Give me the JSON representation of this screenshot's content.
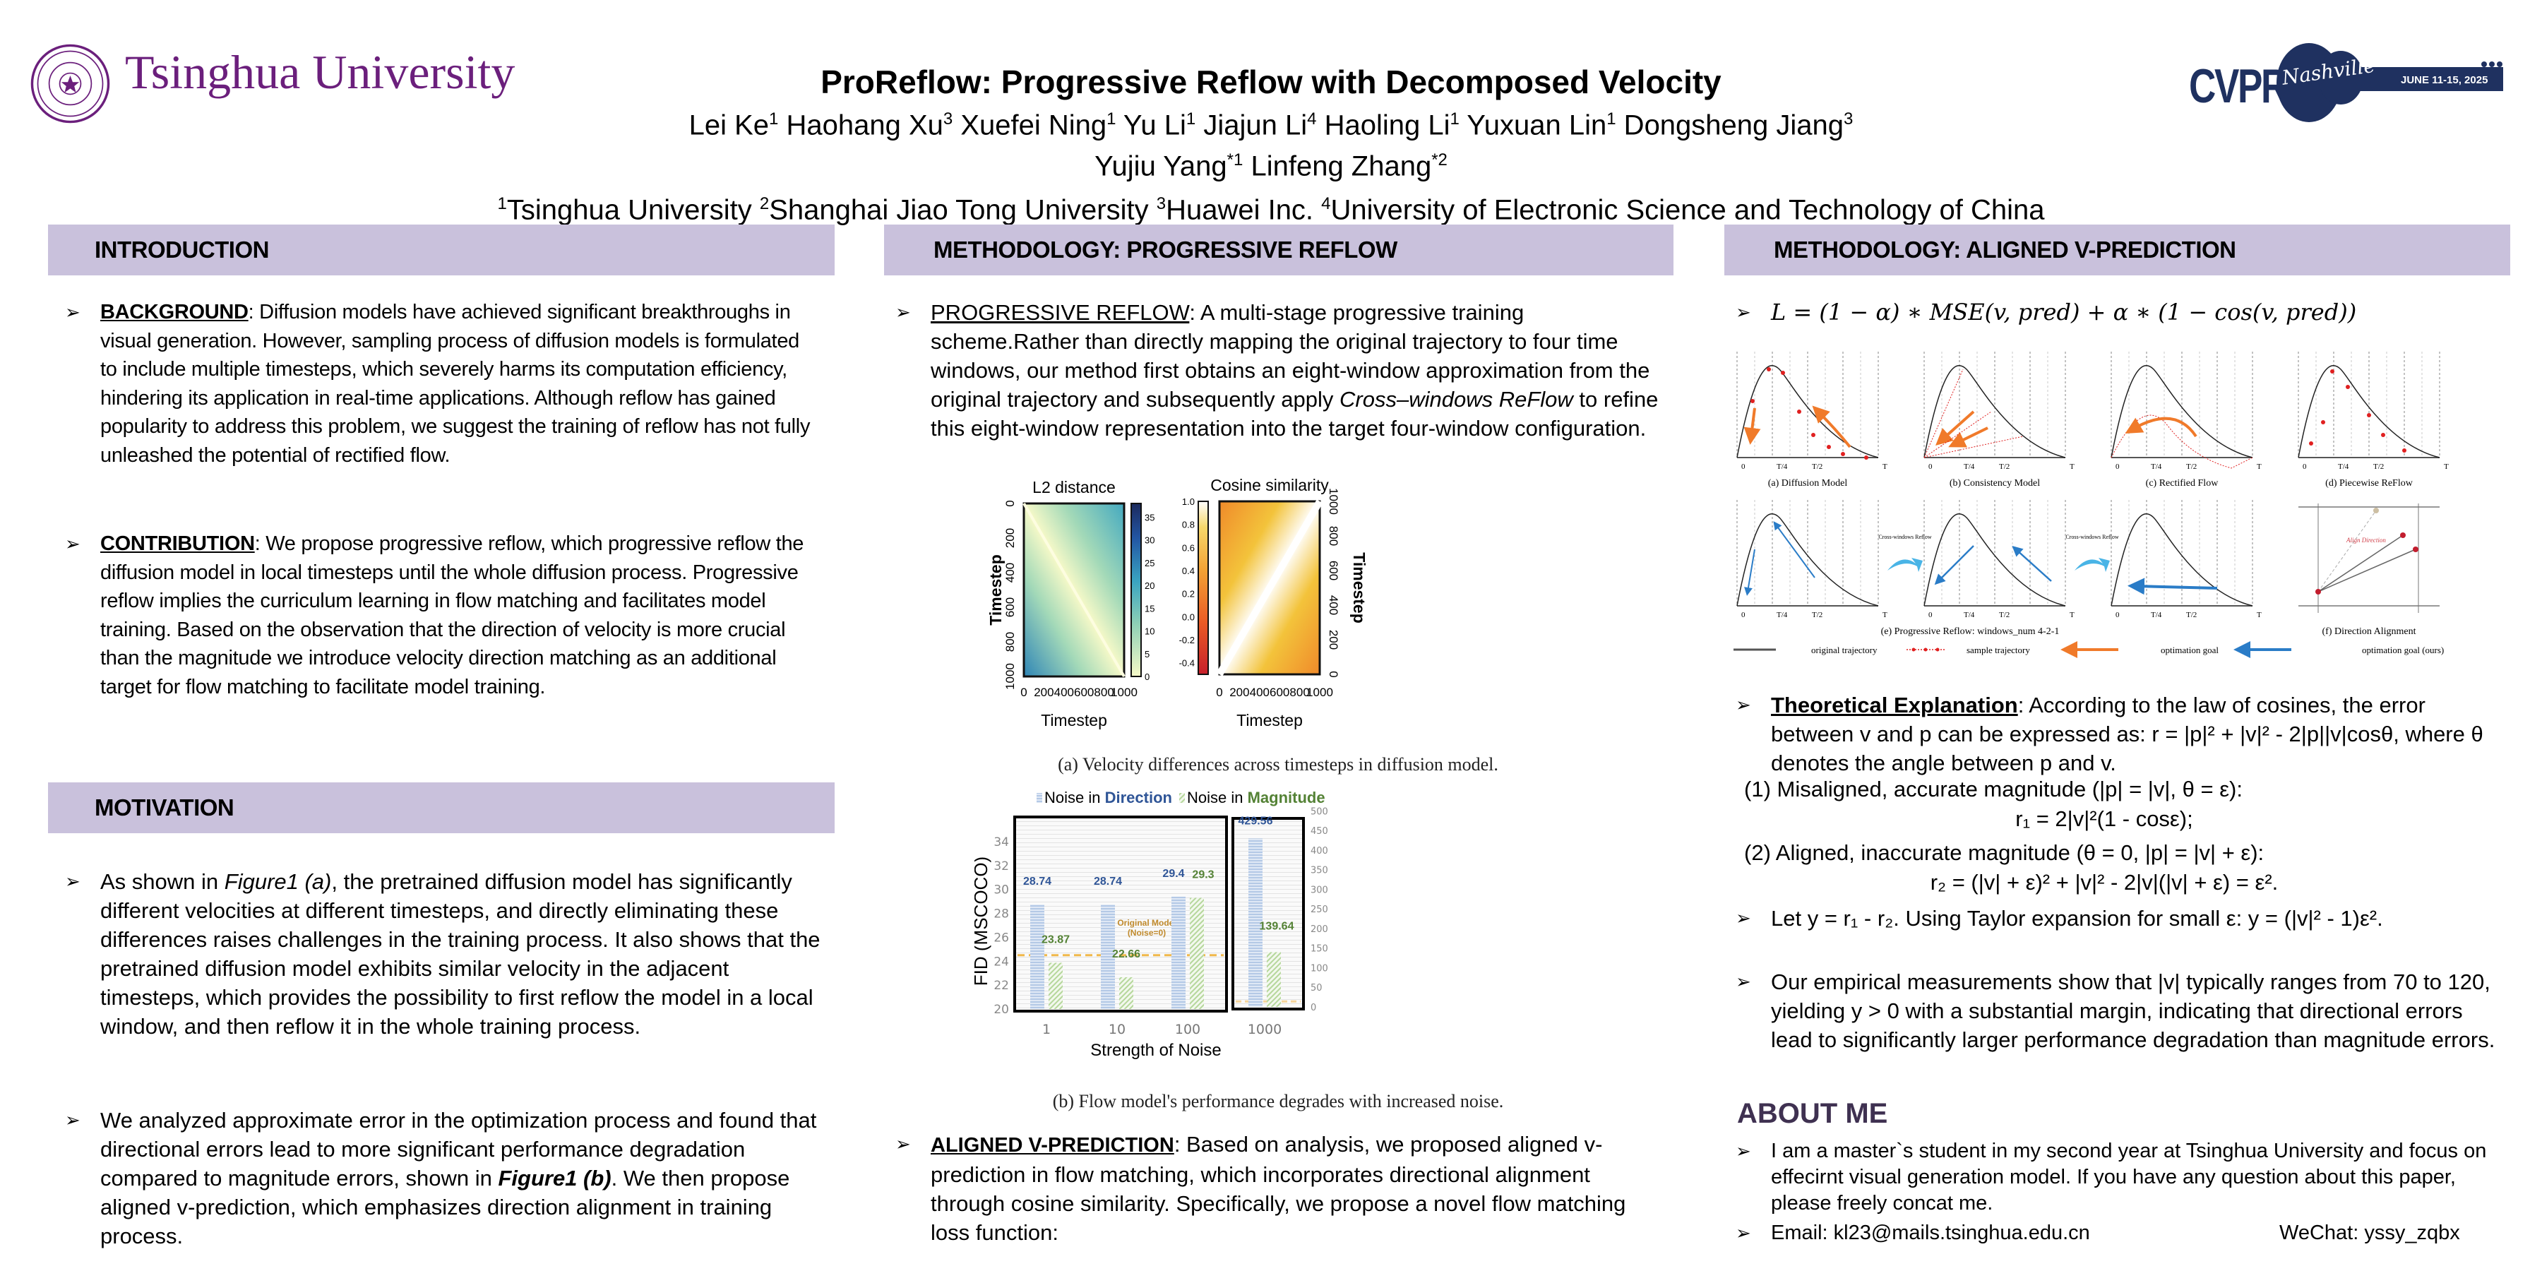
{
  "header": {
    "university_logo_text": "Tsinghua University",
    "title": "ProReflow: Progressive Reflow with Decomposed Velocity",
    "authors_line1": [
      {
        "name": "Lei Ke",
        "aff": "1"
      },
      {
        "name": "Haohang Xu",
        "aff": "3"
      },
      {
        "name": "Xuefei Ning",
        "aff": "1"
      },
      {
        "name": "Yu Li",
        "aff": "1"
      },
      {
        "name": "Jiajun Li",
        "aff": "4"
      },
      {
        "name": "Haoling Li",
        "aff": "1"
      },
      {
        "name": "Yuxuan Lin",
        "aff": "1"
      },
      {
        "name": "Dongsheng Jiang",
        "aff": "3"
      }
    ],
    "authors_line2": [
      {
        "name": "Yujiu Yang",
        "aff": "*1"
      },
      {
        "name": "Linfeng Zhang",
        "aff": "*2"
      }
    ],
    "affiliations": [
      {
        "num": "1",
        "name": "Tsinghua University"
      },
      {
        "num": "2",
        "name": "Shanghai Jiao Tong University"
      },
      {
        "num": "3",
        "name": "Huawei Inc."
      },
      {
        "num": "4",
        "name": "University of Electronic Science and Technology of China"
      }
    ],
    "conference_logo": {
      "name": "CVPR",
      "city": "Nashville",
      "dates": "JUNE 11-15, 2025"
    },
    "colors": {
      "purple": "#6b1f7c",
      "cvpr_navy": "#1f3160",
      "section_bg": "#c9c1dc"
    }
  },
  "introduction": {
    "heading": "INTRODUCTION",
    "background_label": "BACKGROUND",
    "background_text": ": Diffusion models have achieved significant breakthroughs in visual generation. However,  sampling process of diffusion models is formulated to include multiple timesteps, which severely harms its computation efficiency, hindering its application in real-time applications. Although reflow has gained popularity to address this problem, we suggest the training of reflow has not fully unleashed the potential of rectified flow.",
    "contribution_label": "CONTRIBUTION",
    "contribution_text": ": We propose progressive reflow, which progressive reflow the diffusion model in local timesteps until the whole diffusion process. Progressive reflow implies the curriculum learning in flow matching and facilitates model training. Based on the observation that the direction of velocity is more crucial than the magnitude we introduce velocity direction matching as an additional target for flow matching to facilitate model training."
  },
  "motivation": {
    "heading": "MOTIVATION",
    "p1_pre": " As shown in ",
    "p1_ref": "Figure1 (a)",
    "p1_post": ", the pretrained diffusion model has significantly different velocities at different timesteps, and directly eliminating these differences raises challenges in the training process. It also shows that the pretrained diffusion model exhibits similar velocity in the adjacent timesteps, which provides the possibility to first reflow the model in a local window, and then reflow it in the whole training process.",
    "p2_pre": "We analyzed approximate error in the optimization process and found that directional errors lead to more significant performance degradation compared to magnitude errors, shown in ",
    "p2_ref": "Figure1 (b)",
    "p2_post": ". We then propose aligned v-prediction, which emphasizes direction alignment in training process."
  },
  "progressive_reflow": {
    "heading": "METHODOLOGY: PROGRESSIVE REFLOW",
    "label": "PROGRESSIVE REFLOW",
    "text_pre": ": A multi-stage progressive training scheme.Rather than directly mapping the original trajectory to four time windows, our method first obtains an eight-window approximation from the original trajectory and subsequently apply ",
    "text_em": "Cross–windows ReFlow",
    "text_post": " to refine this eight-window representation into the target four-window configuration.",
    "fig_a_caption": "(a) Velocity differences across timesteps in diffusion model.",
    "fig_b_caption": "(b) Flow model's performance degrades with increased noise.",
    "aligned_label": "ALIGNED V-PREDICTION",
    "aligned_text": ": Based on analysis, we proposed aligned v-prediction in flow matching, which incorporates directional alignment through cosine similarity. Specifically, we propose a novel flow matching loss function:"
  },
  "chart_data": [
    {
      "type": "heatmap",
      "title": "L2 distance",
      "xlabel": "Timestep",
      "ylabel": "Timestep",
      "x_ticks": [
        "0",
        "200",
        "400",
        "600",
        "800",
        "1000"
      ],
      "y_ticks": [
        "0",
        "200",
        "400",
        "600",
        "800",
        "1000"
      ],
      "colorbar_ticks": [
        "0",
        "5",
        "10",
        "15",
        "20",
        "25",
        "30",
        "35"
      ],
      "colorbar_range": [
        0,
        38
      ],
      "description": "distance grows with |i - j|, zero on diagonal"
    },
    {
      "type": "heatmap",
      "title": "Cosine similarity",
      "xlabel": "Timestep",
      "ylabel": "Timestep",
      "x_ticks": [
        "0",
        "200",
        "400",
        "600",
        "800",
        "1000"
      ],
      "y_ticks": [
        "1000",
        "800",
        "600",
        "400",
        "200",
        "0"
      ],
      "colorbar_ticks": [
        "1.0",
        "0.8",
        "0.6",
        "0.4",
        "0.2",
        "0.0",
        "-0.2",
        "-0.4"
      ],
      "colorbar_range": [
        -0.5,
        1.0
      ],
      "description": "similarity 1.0 on diagonal, decreasing away"
    },
    {
      "type": "bar",
      "title": "",
      "xlabel": "Strength of Noise",
      "ylabel": "FID (MSCOCO)",
      "categories": [
        "1",
        "10",
        "100",
        "1000"
      ],
      "legend": [
        {
          "prefix": "Noise in ",
          "word": "Direction",
          "color": "#2f5597"
        },
        {
          "prefix": "Noise in ",
          "word": "Magnitude",
          "color": "#548235"
        }
      ],
      "series": [
        {
          "name": "Noise in Direction",
          "values": [
            28.74,
            28.74,
            29.4,
            429.56
          ],
          "labels": [
            "28.74",
            "28.74",
            "29.4",
            "429.56"
          ]
        },
        {
          "name": "Noise in Magnitude",
          "values": [
            23.87,
            22.66,
            29.3,
            139.64
          ],
          "labels": [
            "23.87",
            "22.66",
            "29.3",
            "139.64"
          ]
        }
      ],
      "left_axis": {
        "ylim": [
          20,
          35
        ],
        "ticks": [
          "20",
          "22",
          "24",
          "26",
          "28",
          "30",
          "32",
          "34"
        ]
      },
      "right_axis": {
        "ylim": [
          0,
          500
        ],
        "ticks": [
          "0",
          "50",
          "100",
          "150",
          "200",
          "250",
          "300",
          "350",
          "400",
          "450",
          "500"
        ],
        "applies_to": "1000"
      },
      "reference_line": {
        "label1": "Original Model",
        "label2": "(Noise=0)",
        "value_left": 24.5,
        "value_right": 14
      },
      "legend_position": "top"
    }
  ],
  "aligned_v": {
    "heading": "METHODOLOGY: ALIGNED V-PREDICTION",
    "loss_formula": "L = (1 − α) ∗ MSE(v, pred) + α ∗ (1 − cos(v, pred))",
    "diagram_panels": [
      "(a) Diffusion Model",
      "(b) Consistency Model",
      "(c) Rectified Flow",
      "(d) Piecewise ReFlow",
      "(e) Progressive Reflow: windows_num 4-2-1",
      "(f) Direction Alignment"
    ],
    "axis_ticks": [
      "0",
      "T/4",
      "T/2",
      "T"
    ],
    "cross_windows_label": "Cross-windows Reflow",
    "align_direction_label": "Align Direction",
    "diagram_legend": [
      "original trajectory",
      "sample trajectory",
      "optimation goal",
      "optimation goal (ours)"
    ],
    "theory_label": "Theoretical Explanation",
    "theory_text": ": According to the law of cosines, the error between v and p can be expressed as: r = |p|² + |v|² - 2|p||v|cosθ, where θ denotes the angle between p and v.",
    "case1": "(1) Misaligned, accurate magnitude (|p| = |v|, θ = ε):",
    "case1_eq": "r₁ = 2|v|²(1 - cosε);",
    "case2": "(2) Aligned, inaccurate magnitude (θ = 0, |p| = |v| + ε):",
    "case2_eq": "r₂ = (|v| + ε)² + |v|² - 2|v|(|v| + ε) = ε².",
    "taylor": "Let y = r₁ - r₂. Using Taylor expansion for small ε: y = (|v|² - 1)ε².",
    "empirical": "Our empirical measurements show that |v| typically ranges from 70 to 120, yielding y > 0 with a substantial margin, indicating that directional errors lead to significantly larger performance degradation than magnitude errors."
  },
  "about": {
    "heading": "ABOUT ME",
    "bio": "I am a master`s student in my second year at Tsinghua University and focus on effecirnt visual generation model. If you have any question about this paper, please freely concat me.",
    "email": "Email: kl23@mails.tsinghua.edu.cn",
    "wechat": "WeChat: yssy_zqbx"
  }
}
